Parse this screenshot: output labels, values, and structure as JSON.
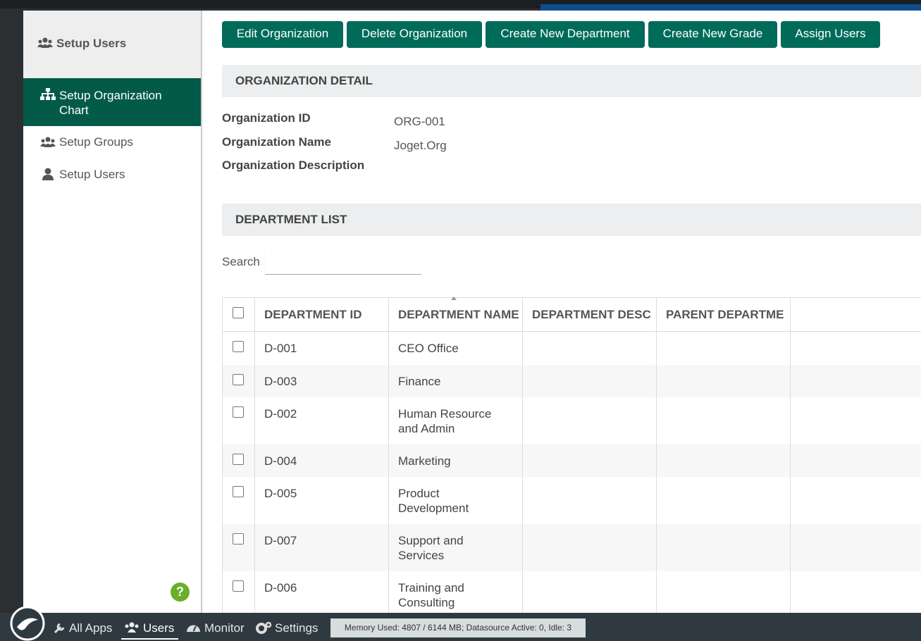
{
  "sidebar": {
    "header": "Setup Users",
    "items": [
      "Setup Organization Chart",
      "Setup Groups",
      "Setup Users"
    ],
    "help": "?"
  },
  "toolbar": {
    "buttons": [
      "Edit Organization",
      "Delete Organization",
      "Create New Department",
      "Create New Grade",
      "Assign Users"
    ]
  },
  "organization_detail": {
    "title": "ORGANIZATION DETAIL",
    "fields": [
      {
        "label": "Organization ID",
        "value": "ORG-001"
      },
      {
        "label": "Organization Name",
        "value": "Joget.Org"
      },
      {
        "label": "Organization Description"
      }
    ]
  },
  "department_list": {
    "title": "DEPARTMENT LIST",
    "search_label": "Search",
    "columns": [
      "DEPARTMENT ID",
      "DEPARTMENT NAME",
      "DEPARTMENT DESC",
      "PARENT DEPARTME"
    ],
    "rows": [
      [
        "D-001",
        "CEO Office"
      ],
      [
        "D-003",
        "Finance"
      ],
      [
        "D-002",
        "Human Resource and Admin"
      ],
      [
        "D-004",
        "Marketing"
      ],
      [
        "D-005",
        "Product Development"
      ],
      [
        "D-007",
        "Support and Services"
      ],
      [
        "D-006",
        "Training and Consulting"
      ]
    ]
  },
  "footer": {
    "nav": [
      "All Apps",
      "Users",
      "Monitor",
      "Settings"
    ],
    "status": "Memory Used: 4807 / 6144 MB; Datasource Active: 0, Idle: 3"
  }
}
